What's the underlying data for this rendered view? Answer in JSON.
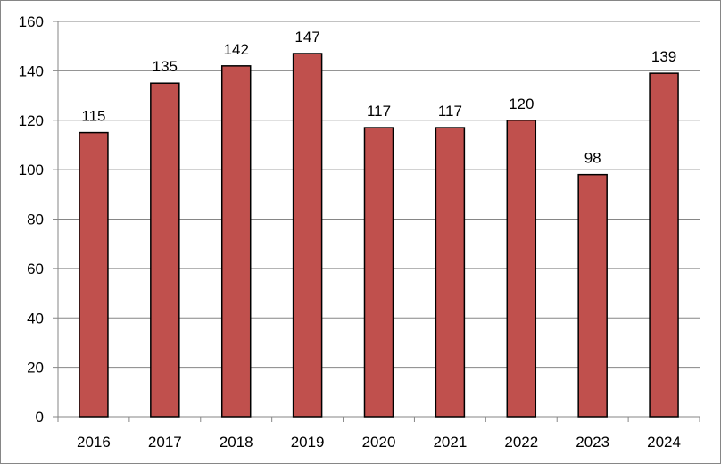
{
  "chart_data": {
    "type": "bar",
    "categories": [
      "2016",
      "2017",
      "2018",
      "2019",
      "2020",
      "2021",
      "2022",
      "2023",
      "2024"
    ],
    "values": [
      115,
      135,
      142,
      147,
      117,
      117,
      120,
      98,
      139
    ],
    "data_labels": [
      "115",
      "135",
      "142",
      "147",
      "117",
      "117",
      "120",
      "98",
      "139"
    ],
    "y_ticks": [
      "0",
      "20",
      "40",
      "60",
      "80",
      "100",
      "120",
      "140",
      "160"
    ],
    "ylim": [
      0,
      160
    ],
    "y_step": 20,
    "grid": true,
    "legend": "none",
    "bar_color": "#C0504D",
    "bar_outline_color": "#000000",
    "grid_color": "#868686"
  }
}
